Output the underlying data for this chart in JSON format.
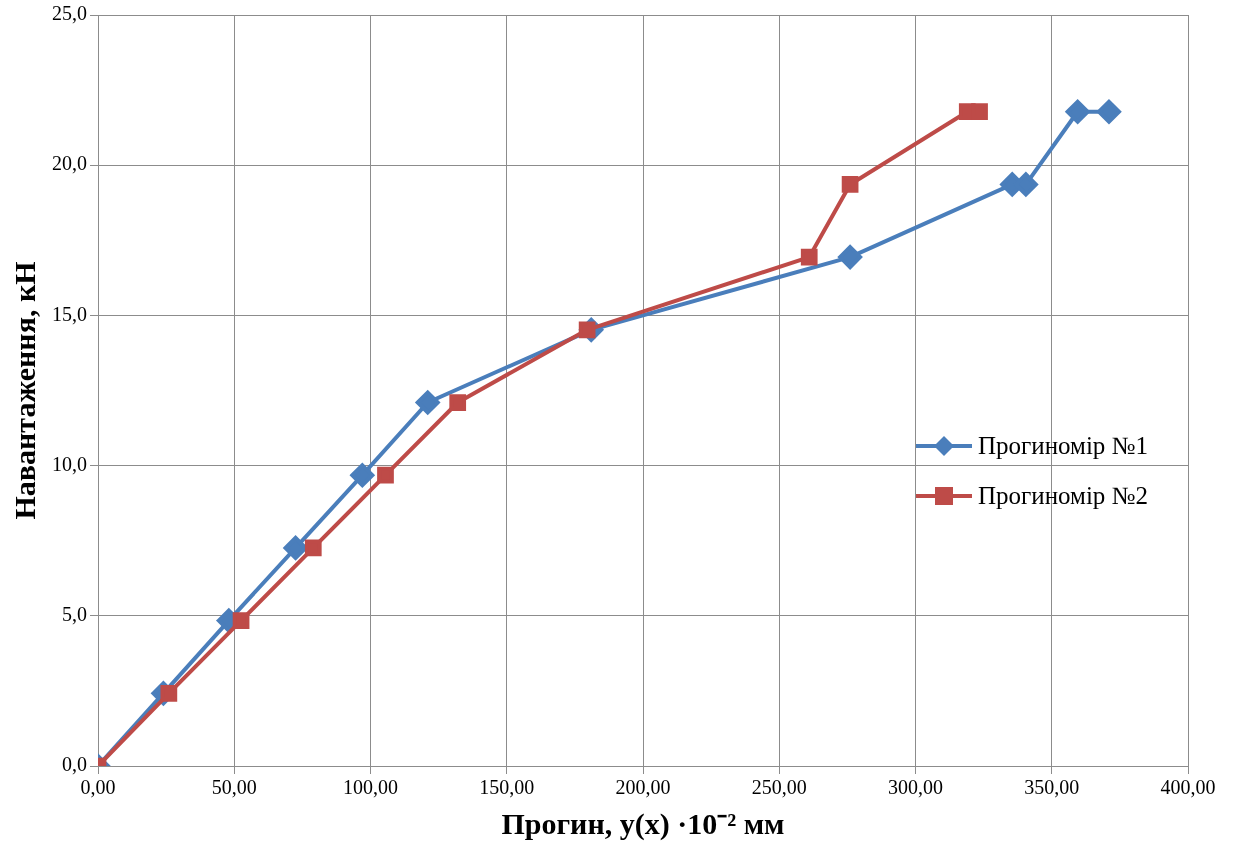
{
  "chart_data": {
    "type": "line",
    "xlabel": "Прогин, y(x) ·10⁻² мм",
    "ylabel": "Навантаження, кН",
    "series": [
      {
        "name": "Прогиномір №1",
        "color": "#4a7ebb",
        "marker": "diamond",
        "x": [
          0,
          24,
          48,
          72.5,
          97,
          121,
          181,
          276,
          335.5,
          340.5,
          359.5,
          371
        ],
        "values": [
          0,
          2.42,
          4.84,
          7.26,
          9.68,
          12.1,
          14.52,
          16.94,
          19.36,
          19.36,
          21.78,
          21.78
        ]
      },
      {
        "name": "Прогиномір №2",
        "color": "#be4b48",
        "marker": "square",
        "x": [
          0,
          26,
          52.5,
          79,
          105.5,
          132,
          179.5,
          261,
          276,
          319,
          323.5
        ],
        "values": [
          0,
          2.42,
          4.84,
          7.26,
          9.68,
          12.1,
          14.52,
          16.94,
          19.36,
          21.78,
          21.78
        ]
      }
    ],
    "xlim": [
      0,
      400
    ],
    "xticks": [
      {
        "value": 0,
        "label": "0,00"
      },
      {
        "value": 50,
        "label": "50,00"
      },
      {
        "value": 100,
        "label": "100,00"
      },
      {
        "value": 150,
        "label": "150,00"
      },
      {
        "value": 200,
        "label": "200,00"
      },
      {
        "value": 250,
        "label": "250,00"
      },
      {
        "value": 300,
        "label": "300,00"
      },
      {
        "value": 350,
        "label": "350,00"
      },
      {
        "value": 400,
        "label": "400,00"
      }
    ],
    "ylim": [
      0,
      25
    ],
    "yticks": [
      {
        "value": 0,
        "label": "0,0"
      },
      {
        "value": 5,
        "label": "5,0"
      },
      {
        "value": 10,
        "label": "10,0"
      },
      {
        "value": 15,
        "label": "15,0"
      },
      {
        "value": 20,
        "label": "20,0"
      },
      {
        "value": 25,
        "label": "25,0"
      }
    ],
    "grid": true,
    "legend": "right",
    "line_style": "solid"
  }
}
